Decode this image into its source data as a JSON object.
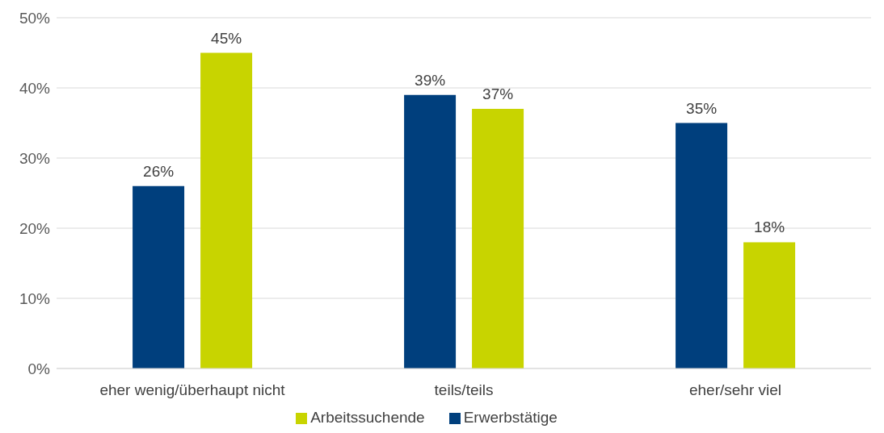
{
  "chart_data": {
    "type": "bar",
    "categories": [
      "eher wenig/überhaupt nicht",
      "teils/teils",
      "eher/sehr viel"
    ],
    "series": [
      {
        "name": "Erwerbstätige",
        "color": "#003f7d",
        "values": [
          26,
          39,
          35
        ],
        "value_labels": [
          "26%",
          "39%",
          "35%"
        ]
      },
      {
        "name": "Arbeitssuchende",
        "color": "#c8d400",
        "values": [
          45,
          37,
          18
        ],
        "value_labels": [
          "45%",
          "37%",
          "18%"
        ]
      }
    ],
    "ylim": [
      0,
      50
    ],
    "yticks": [
      {
        "value": 0,
        "label": "0%"
      },
      {
        "value": 10,
        "label": "10%"
      },
      {
        "value": 20,
        "label": "20%"
      },
      {
        "value": 30,
        "label": "30%"
      },
      {
        "value": 40,
        "label": "40%"
      },
      {
        "value": 50,
        "label": "50%"
      }
    ],
    "grid": "y",
    "legend": "bottom"
  }
}
